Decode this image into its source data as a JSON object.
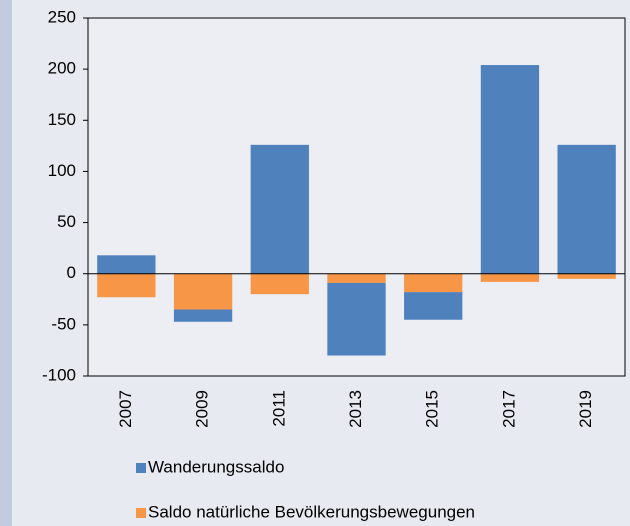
{
  "chart_data": {
    "type": "stacked_bar",
    "categories": [
      "2007",
      "2009",
      "2011",
      "2013",
      "2015",
      "2017",
      "2019"
    ],
    "series": [
      {
        "name": "Wanderungssaldo",
        "color": "#4f81bd",
        "values": [
          18,
          -12,
          126,
          -71,
          -27,
          204,
          126
        ]
      },
      {
        "name": "Saldo natürliche Bevölkerungsbewegungen",
        "color": "#f79646",
        "values": [
          -23,
          -35,
          -20,
          -9,
          -18,
          -8,
          -5
        ]
      }
    ],
    "ylim": [
      -100,
      250
    ],
    "yticks": [
      -100,
      -50,
      0,
      50,
      100,
      150,
      200,
      250
    ]
  }
}
